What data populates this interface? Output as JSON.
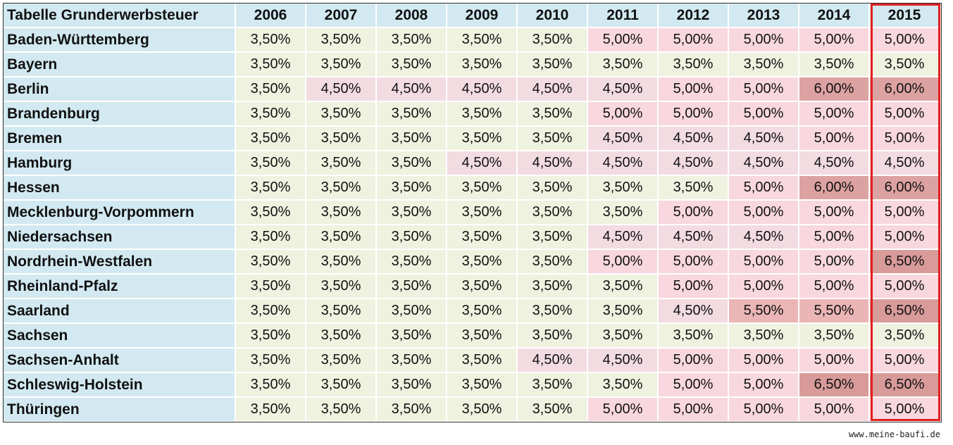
{
  "table": {
    "title": "Tabelle Grunderwerbsteuer",
    "years": [
      "2006",
      "2007",
      "2008",
      "2009",
      "2010",
      "2011",
      "2012",
      "2013",
      "2014",
      "2015"
    ],
    "highlighted_column": "2015",
    "highlight_color": "#e01f1f",
    "colors": {
      "header_bg": "#d3e9f1",
      "label_bg": "#d3e9f1",
      "base_bg": "#eef2df",
      "rate_4_50": "#f3dbe2",
      "rate_5_00": "#f8d7de",
      "rate_5_50": "#ebb5b5",
      "rate_6_00": "#dca1a1",
      "rate_6_50": "#d99a9a"
    },
    "rows": [
      {
        "state": "Baden-Württemberg",
        "values": [
          "3,50%",
          "3,50%",
          "3,50%",
          "3,50%",
          "3,50%",
          "5,00%",
          "5,00%",
          "5,00%",
          "5,00%",
          "5,00%"
        ]
      },
      {
        "state": "Bayern",
        "values": [
          "3,50%",
          "3,50%",
          "3,50%",
          "3,50%",
          "3,50%",
          "3,50%",
          "3,50%",
          "3,50%",
          "3,50%",
          "3,50%"
        ]
      },
      {
        "state": "Berlin",
        "values": [
          "3,50%",
          "4,50%",
          "4,50%",
          "4,50%",
          "4,50%",
          "4,50%",
          "5,00%",
          "5,00%",
          "6,00%",
          "6,00%"
        ]
      },
      {
        "state": "Brandenburg",
        "values": [
          "3,50%",
          "3,50%",
          "3,50%",
          "3,50%",
          "3,50%",
          "5,00%",
          "5,00%",
          "5,00%",
          "5,00%",
          "5,00%"
        ]
      },
      {
        "state": "Bremen",
        "values": [
          "3,50%",
          "3,50%",
          "3,50%",
          "3,50%",
          "3,50%",
          "4,50%",
          "4,50%",
          "4,50%",
          "5,00%",
          "5,00%"
        ]
      },
      {
        "state": "Hamburg",
        "values": [
          "3,50%",
          "3,50%",
          "3,50%",
          "4,50%",
          "4,50%",
          "4,50%",
          "4,50%",
          "4,50%",
          "4,50%",
          "4,50%"
        ]
      },
      {
        "state": "Hessen",
        "values": [
          "3,50%",
          "3,50%",
          "3,50%",
          "3,50%",
          "3,50%",
          "3,50%",
          "3,50%",
          "5,00%",
          "6,00%",
          "6,00%"
        ]
      },
      {
        "state": "Mecklenburg-Vorpommern",
        "values": [
          "3,50%",
          "3,50%",
          "3,50%",
          "3,50%",
          "3,50%",
          "3,50%",
          "5,00%",
          "5,00%",
          "5,00%",
          "5,00%"
        ]
      },
      {
        "state": "Niedersachsen",
        "values": [
          "3,50%",
          "3,50%",
          "3,50%",
          "3,50%",
          "3,50%",
          "4,50%",
          "4,50%",
          "4,50%",
          "5,00%",
          "5,00%"
        ]
      },
      {
        "state": "Nordrhein-Westfalen",
        "values": [
          "3,50%",
          "3,50%",
          "3,50%",
          "3,50%",
          "3,50%",
          "5,00%",
          "5,00%",
          "5,00%",
          "5,00%",
          "6,50%"
        ]
      },
      {
        "state": "Rheinland-Pfalz",
        "values": [
          "3,50%",
          "3,50%",
          "3,50%",
          "3,50%",
          "3,50%",
          "3,50%",
          "5,00%",
          "5,00%",
          "5,00%",
          "5,00%"
        ]
      },
      {
        "state": "Saarland",
        "values": [
          "3,50%",
          "3,50%",
          "3,50%",
          "3,50%",
          "3,50%",
          "3,50%",
          "4,50%",
          "5,50%",
          "5,50%",
          "6,50%"
        ]
      },
      {
        "state": "Sachsen",
        "values": [
          "3,50%",
          "3,50%",
          "3,50%",
          "3,50%",
          "3,50%",
          "3,50%",
          "3,50%",
          "3,50%",
          "3,50%",
          "3,50%"
        ]
      },
      {
        "state": "Sachsen-Anhalt",
        "values": [
          "3,50%",
          "3,50%",
          "3,50%",
          "3,50%",
          "4,50%",
          "4,50%",
          "5,00%",
          "5,00%",
          "5,00%",
          "5,00%"
        ]
      },
      {
        "state": "Schleswig-Holstein",
        "values": [
          "3,50%",
          "3,50%",
          "3,50%",
          "3,50%",
          "3,50%",
          "3,50%",
          "5,00%",
          "5,00%",
          "6,50%",
          "6,50%"
        ]
      },
      {
        "state": "Thüringen",
        "values": [
          "3,50%",
          "3,50%",
          "3,50%",
          "3,50%",
          "3,50%",
          "5,00%",
          "5,00%",
          "5,00%",
          "5,00%",
          "5,00%"
        ]
      }
    ]
  },
  "footer": {
    "watermark": "www.meine-baufi.de"
  }
}
